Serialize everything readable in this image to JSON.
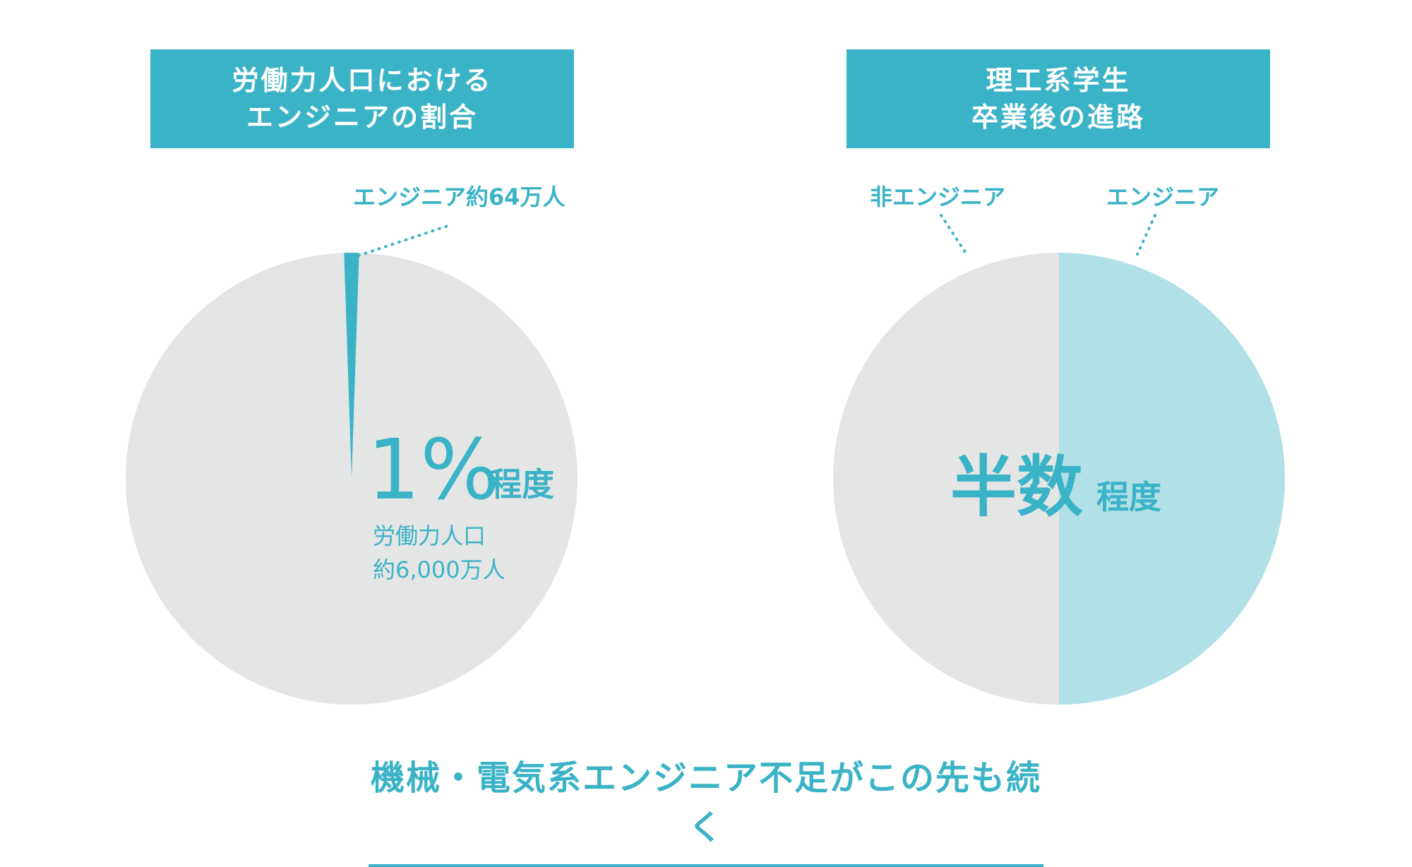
{
  "headers": {
    "left": [
      "労働力人口における",
      "エンジニアの割合"
    ],
    "right": [
      "理工系学生",
      "卒業後の進路"
    ]
  },
  "chart_data": [
    {
      "type": "pie",
      "slices": [
        {
          "name": "エンジニア",
          "value": 64,
          "color": "#3bb3c7"
        },
        {
          "name": "労働力人口",
          "value": 5936,
          "color": "#e4e5e5"
        }
      ],
      "annotations": {
        "callout": "エンジニア約64万人",
        "big_value": "1%",
        "big_suffix": "程度",
        "sub_line1": "労働力人口",
        "sub_line2": "約6,000万人"
      }
    },
    {
      "type": "pie",
      "slices": [
        {
          "name": "エンジニア",
          "value": 50,
          "color": "#b1e0e6"
        },
        {
          "name": "非エンジニア",
          "value": 50,
          "color": "#e4e5e5"
        }
      ],
      "annotations": {
        "label_left": "非エンジニア",
        "label_right": "エンジニア",
        "big_value": "半数",
        "big_suffix": "程度"
      }
    }
  ],
  "colors": {
    "accent": "#3bb3c7",
    "light_accent": "#b1e0e6",
    "gray": "#e4e5e5"
  },
  "footer": {
    "title": "機械・電気系エンジニア不足がこの先も続く"
  }
}
